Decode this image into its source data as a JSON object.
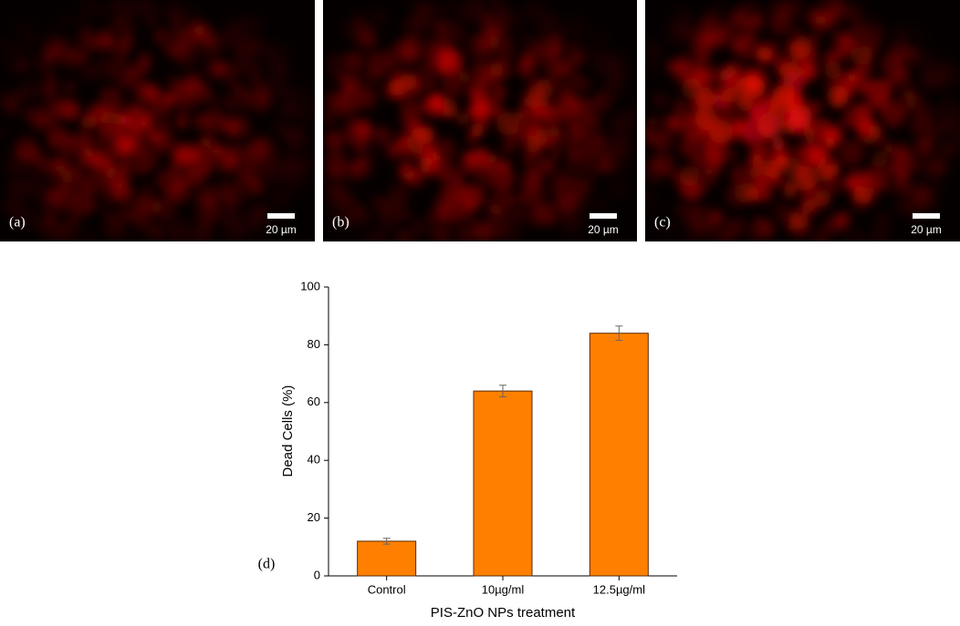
{
  "images": [
    {
      "label": "(a)",
      "scale_bar": "20 µm"
    },
    {
      "label": "(b)",
      "scale_bar": "20 µm"
    },
    {
      "label": "(c)",
      "scale_bar": "20 µm"
    }
  ],
  "chart_data": {
    "type": "bar",
    "panel_label": "(d)",
    "x_label": "PIS-ZnO NPs treatment",
    "y_label": "Dead Cells (%)",
    "categories": [
      "Control",
      "10µg/ml",
      "12.5µg/ml"
    ],
    "values": [
      12,
      64,
      84
    ],
    "errors": [
      1,
      2,
      2.5
    ],
    "color": "#ff8000",
    "ylim": [
      0,
      100
    ],
    "yticks": [
      0,
      20,
      40,
      60,
      80,
      100
    ]
  }
}
